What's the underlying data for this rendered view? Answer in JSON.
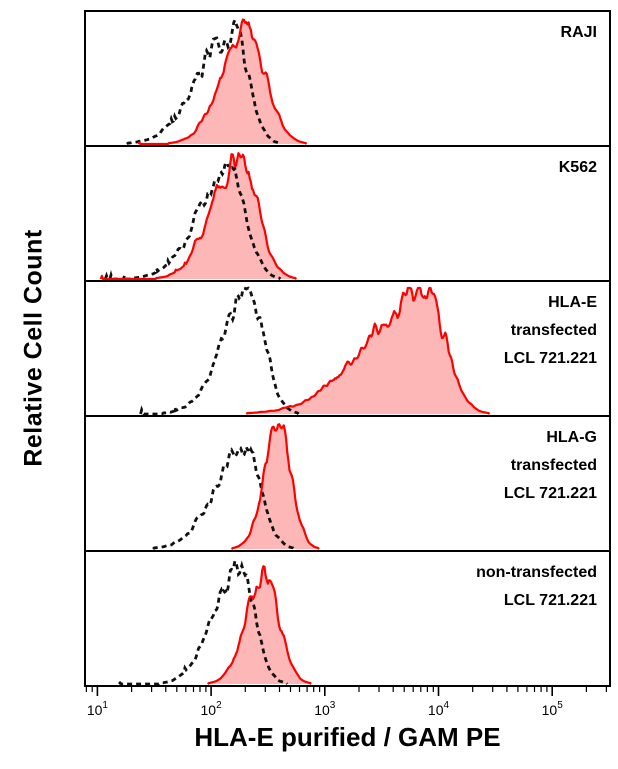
{
  "chart_data": {
    "type": "area",
    "chart_kind": "flow-cytometry-overlay-histograms",
    "xlabel": "HLA-E purified / GAM PE",
    "ylabel": "Relative Cell Count",
    "x_axis": {
      "scale": "log10",
      "base_label": "10",
      "tick_exponents": [
        1,
        2,
        3,
        4,
        5
      ],
      "range_log": [
        0.9,
        5.5
      ]
    },
    "y_axis": {
      "label": "Relative Cell Count",
      "ticks": "none",
      "normalized": [
        0,
        1
      ]
    },
    "grid": false,
    "legend": "none",
    "series_styles": {
      "sample": "red solid line with light red fill",
      "control": "black dashed line, unfilled"
    },
    "colors": {
      "sample_line": "#ff0000",
      "sample_fill": "#fca5a5",
      "control_line": "#111111",
      "frame": "#000000"
    },
    "panels": [
      {
        "name": "RAJI",
        "label_lines": [
          "RAJI"
        ],
        "control": {
          "mu": 2.2,
          "sigma_l": 0.3,
          "sigma_r": 0.13,
          "amp": 0.9
        },
        "sample": {
          "mu": 2.31,
          "sigma_l": 0.22,
          "sigma_r": 0.17,
          "amp": 0.88
        }
      },
      {
        "name": "K562",
        "label_lines": [
          "K562"
        ],
        "control": {
          "mu": 2.17,
          "sigma_l": 0.28,
          "sigma_r": 0.14,
          "amp": 0.85
        },
        "sample": {
          "mu": 2.24,
          "sigma_l": 0.23,
          "sigma_r": 0.16,
          "amp": 1.0
        }
      },
      {
        "name": "HLA-E transfected LCL 721.221",
        "label_lines": [
          "HLA-E",
          "transfected",
          "LCL 721.221"
        ],
        "control": {
          "mu": 2.33,
          "sigma_l": 0.24,
          "sigma_r": 0.14,
          "amp": 0.95
        },
        "sample": {
          "mu": 3.88,
          "sigma_l": 0.5,
          "sigma_r": 0.18,
          "amp": 0.97
        }
      },
      {
        "name": "HLA-G transfected LCL 721.221",
        "label_lines": [
          "HLA-G",
          "transfected",
          "LCL 721.221"
        ],
        "control": {
          "mu": 2.3,
          "sigma_l": 0.26,
          "sigma_r": 0.14,
          "amp": 0.82
        },
        "sample": {
          "mu": 2.6,
          "sigma_l": 0.13,
          "sigma_r": 0.11,
          "amp": 0.97
        }
      },
      {
        "name": "non-transfected LCL 721.221",
        "label_lines": [
          "non-transfected",
          "LCL 721.221"
        ],
        "control": {
          "mu": 2.26,
          "sigma_l": 0.23,
          "sigma_r": 0.13,
          "amp": 0.92
        },
        "sample": {
          "mu": 2.47,
          "sigma_l": 0.16,
          "sigma_r": 0.13,
          "amp": 0.85
        }
      }
    ]
  }
}
